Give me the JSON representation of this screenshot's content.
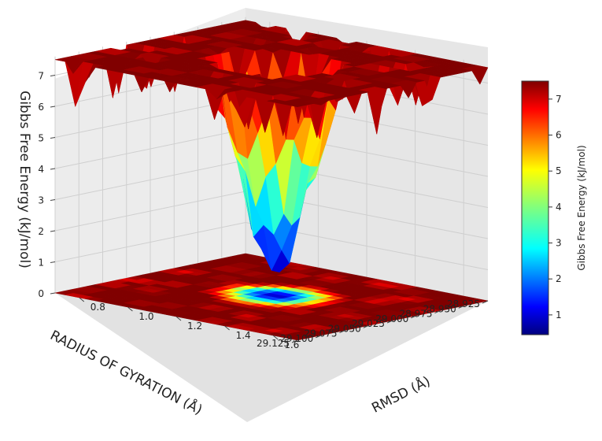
{
  "chart_data": {
    "type": "surface3d",
    "title": "",
    "zlabel": "Gibbs Free Energy (kJ/mol)",
    "xlabel": "RMSD (Å)",
    "ylabel": "RADIUS OF GYRATION (Å)",
    "colorbar_label": "Gibbs Free Energy (kJ/mol)",
    "colormap": "jet",
    "projection": "filled contour on floor",
    "grid": true,
    "colorbar_placement": "right",
    "zlim": [
      0,
      7.5
    ],
    "ylim": [
      28.925,
      29.125
    ],
    "xlim": [
      0.7,
      1.7
    ],
    "z_ticks": [
      "0",
      "1",
      "2",
      "3",
      "4",
      "5",
      "6",
      "7"
    ],
    "x_ticks": [
      "0.8",
      "1.0",
      "1.2",
      "1.4",
      "1.6"
    ],
    "y_ticks": [
      "28.925",
      "28.950",
      "28.975",
      "29.000",
      "29.025",
      "29.050",
      "29.075",
      "29.100",
      "29.125"
    ],
    "colorbar_ticks": [
      "1",
      "2",
      "3",
      "4",
      "5",
      "6",
      "7"
    ],
    "colorbar_range": [
      0.45,
      7.5
    ],
    "plateau_value": 7.5,
    "minimum": {
      "rmsd": 1.2,
      "rg": 29.02,
      "energy": 0.5
    }
  }
}
